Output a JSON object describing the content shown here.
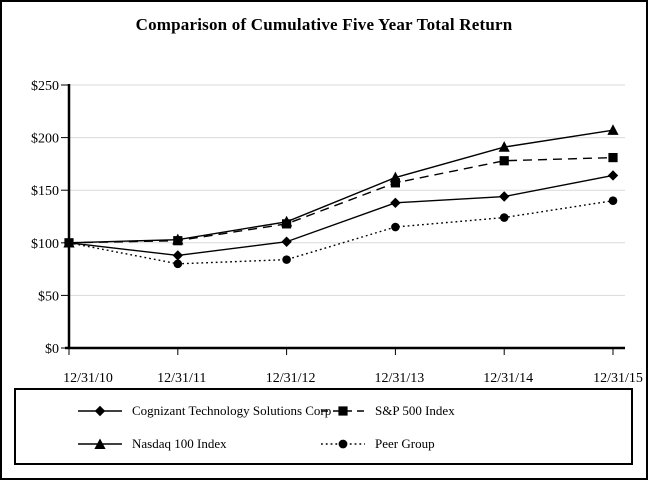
{
  "chart_data": {
    "type": "line",
    "title": "Comparison of Cumulative Five Year Total Return",
    "categories": [
      "12/31/10",
      "12/31/11",
      "12/31/12",
      "12/31/13",
      "12/31/14",
      "12/31/15"
    ],
    "series": [
      {
        "name": "Cognizant Technology Solutions Corp",
        "marker": "diamond",
        "line_style": "solid",
        "values": [
          100,
          88,
          101,
          138,
          144,
          164
        ]
      },
      {
        "name": "S&P 500 Index",
        "marker": "square",
        "line_style": "dashed",
        "values": [
          100,
          102,
          118,
          157,
          178,
          181
        ]
      },
      {
        "name": "Nasdaq 100 Index",
        "marker": "triangle",
        "line_style": "solid",
        "values": [
          100,
          103,
          120,
          162,
          191,
          207
        ]
      },
      {
        "name": "Peer Group",
        "marker": "circle",
        "line_style": "dotted",
        "values": [
          100,
          80,
          84,
          115,
          124,
          140
        ]
      }
    ],
    "y_ticks": [
      {
        "value": 0,
        "label": "$0"
      },
      {
        "value": 50,
        "label": "$50"
      },
      {
        "value": 100,
        "label": "$100"
      },
      {
        "value": 150,
        "label": "$150"
      },
      {
        "value": 200,
        "label": "$200"
      },
      {
        "value": 250,
        "label": "$250"
      }
    ],
    "ylim": [
      0,
      250
    ],
    "xlabel": "",
    "ylabel": "",
    "grid": true,
    "legend_position": "bottom-box",
    "series_color": "#000000",
    "gridline_color": "#d9d9d9",
    "background_color": "#ffffff"
  }
}
